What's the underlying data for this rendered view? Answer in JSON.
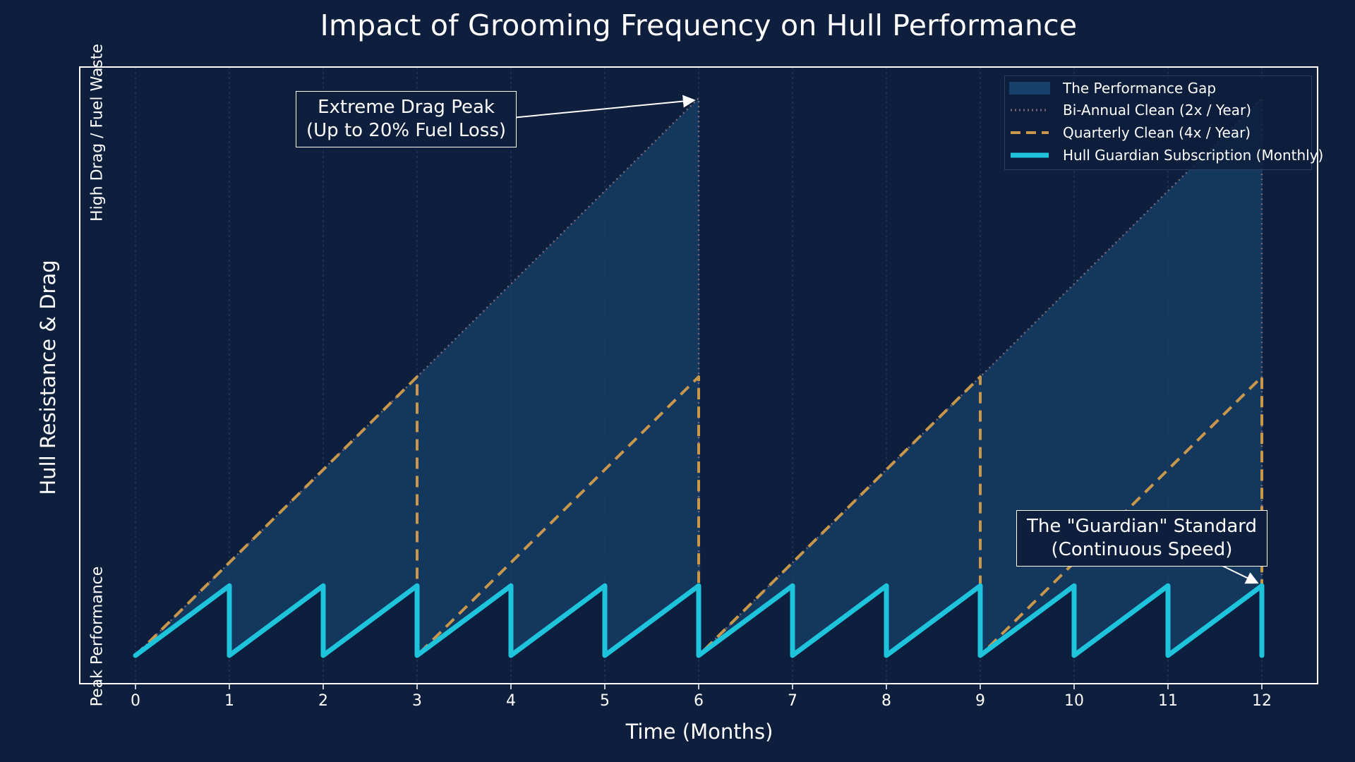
{
  "chart_data": {
    "type": "line",
    "title": "Impact of Grooming Frequency on Hull Performance",
    "xlabel": "Time (Months)",
    "ylabel": "Hull Resistance & Drag",
    "y_hint_high": "High Drag / Fuel Waste",
    "y_hint_low": "Peak Performance",
    "xlim": [
      0,
      12
    ],
    "ylim": [
      0,
      12
    ],
    "x_ticks": [
      "0",
      "1",
      "2",
      "3",
      "4",
      "5",
      "6",
      "7",
      "8",
      "9",
      "10",
      "11",
      "12"
    ],
    "grid": "vertical",
    "legend_position": "top-right",
    "series": [
      {
        "name": "Bi-Annual Clean (2x / Year)",
        "style": "dotted",
        "color": "#7a6a7a",
        "x": [
          0,
          6,
          6,
          12,
          12
        ],
        "y": [
          0,
          12,
          0,
          12,
          0
        ]
      },
      {
        "name": "Quarterly Clean (4x / Year)",
        "style": "dashed",
        "color": "#c9974a",
        "x": [
          0,
          3,
          3,
          6,
          6,
          9,
          9,
          12,
          12
        ],
        "y": [
          0,
          6,
          0,
          6,
          0,
          6,
          0,
          6,
          0
        ]
      },
      {
        "name": "Hull Guardian Subscription (Monthly)",
        "style": "solid",
        "color": "#1ec3dc",
        "x": [
          0,
          1,
          1,
          2,
          2,
          3,
          3,
          4,
          4,
          5,
          5,
          6,
          6,
          7,
          7,
          8,
          8,
          9,
          9,
          10,
          10,
          11,
          11,
          12,
          12
        ],
        "y": [
          0,
          1.5,
          0,
          1.5,
          0,
          1.5,
          0,
          1.5,
          0,
          1.5,
          0,
          1.5,
          0,
          1.5,
          0,
          1.5,
          0,
          1.5,
          0,
          1.5,
          0,
          1.5,
          0,
          1.5,
          0
        ]
      }
    ],
    "fill": {
      "name": "The Performance Gap",
      "color": "#17406a",
      "between": [
        "Bi-Annual Clean (2x / Year)",
        "Hull Guardian Subscription (Monthly)"
      ]
    },
    "annotations": [
      {
        "lines": [
          "Extreme Drag Peak",
          "(Up to 20% Fuel Loss)"
        ],
        "points_to": {
          "x": 6,
          "y": 12
        }
      },
      {
        "lines": [
          "The \"Guardian\" Standard",
          "(Continuous Speed)"
        ],
        "points_to": {
          "x": 12,
          "y": 1.5
        }
      }
    ]
  }
}
